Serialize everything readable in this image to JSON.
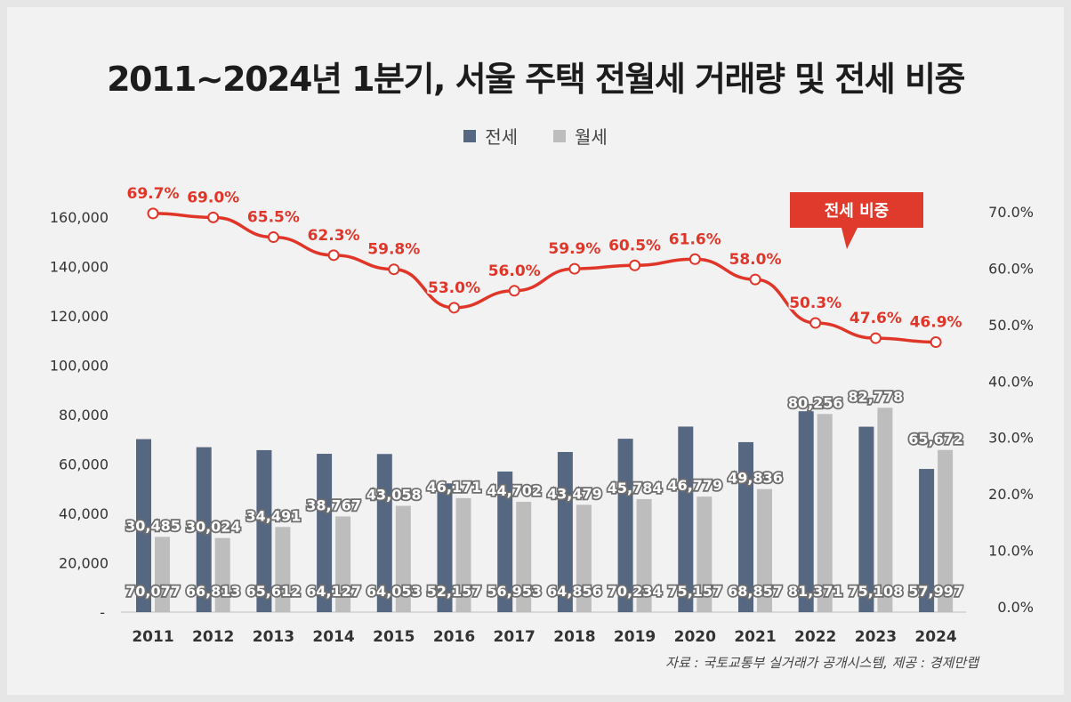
{
  "colors": {
    "jeonse": "#566781",
    "wolse": "#bdbdbd",
    "ratio": "#e0362a"
  },
  "title": "2011~2024년 1분기, 서울 주택 전월세 거래량 및 전세 비중",
  "source": "자료 : 국토교통부 실거래가 공개시스템, 제공 : 경제만랩",
  "callout": "전세 비중",
  "chart_data": {
    "type": "bar",
    "title": "2011~2024년 1분기, 서울 주택 전월세 거래량 및 전세 비중",
    "categories": [
      "2011",
      "2012",
      "2013",
      "2014",
      "2015",
      "2016",
      "2017",
      "2018",
      "2019",
      "2020",
      "2021",
      "2022",
      "2023",
      "2024"
    ],
    "series": [
      {
        "name": "전세",
        "type": "bar",
        "values": [
          70077,
          66813,
          65612,
          64127,
          64053,
          52157,
          56953,
          64856,
          70234,
          75157,
          68857,
          81371,
          75108,
          57997
        ],
        "labels": [
          "70,077",
          "66,813",
          "65,612",
          "64,127",
          "64,053",
          "52,157",
          "56,953",
          "64,856",
          "70,234",
          "75,157",
          "68,857",
          "81,371",
          "75,108",
          "57,997"
        ]
      },
      {
        "name": "월세",
        "type": "bar",
        "values": [
          30485,
          30024,
          34491,
          38767,
          43058,
          46171,
          44702,
          43479,
          45784,
          46779,
          49836,
          80256,
          82778,
          65672
        ],
        "labels": [
          "30,485",
          "30,024",
          "34,491",
          "38,767",
          "43,058",
          "46,171",
          "44,702",
          "43,479",
          "45,784",
          "46,779",
          "49,836",
          "80,256",
          "82,778",
          "65,672"
        ]
      },
      {
        "name": "전세 비중",
        "type": "line",
        "axis": "right",
        "values": [
          69.7,
          69.0,
          65.5,
          62.3,
          59.8,
          53.0,
          56.0,
          59.9,
          60.5,
          61.6,
          58.0,
          50.3,
          47.6,
          46.9
        ],
        "labels": [
          "69.7%",
          "69.0%",
          "65.5%",
          "62.3%",
          "59.8%",
          "53.0%",
          "56.0%",
          "59.9%",
          "60.5%",
          "61.6%",
          "58.0%",
          "50.3%",
          "47.6%",
          "46.9%"
        ]
      }
    ],
    "ylim": [
      0,
      160000
    ],
    "y_ticks": [
      "-",
      "20,000",
      "40,000",
      "60,000",
      "80,000",
      "100,000",
      "120,000",
      "140,000",
      "160,000"
    ],
    "y2lim": [
      0,
      70
    ],
    "y2_ticks": [
      "0.0%",
      "10.0%",
      "20.0%",
      "30.0%",
      "40.0%",
      "50.0%",
      "60.0%",
      "70.0%"
    ],
    "legend": "top-center",
    "grid": false
  }
}
